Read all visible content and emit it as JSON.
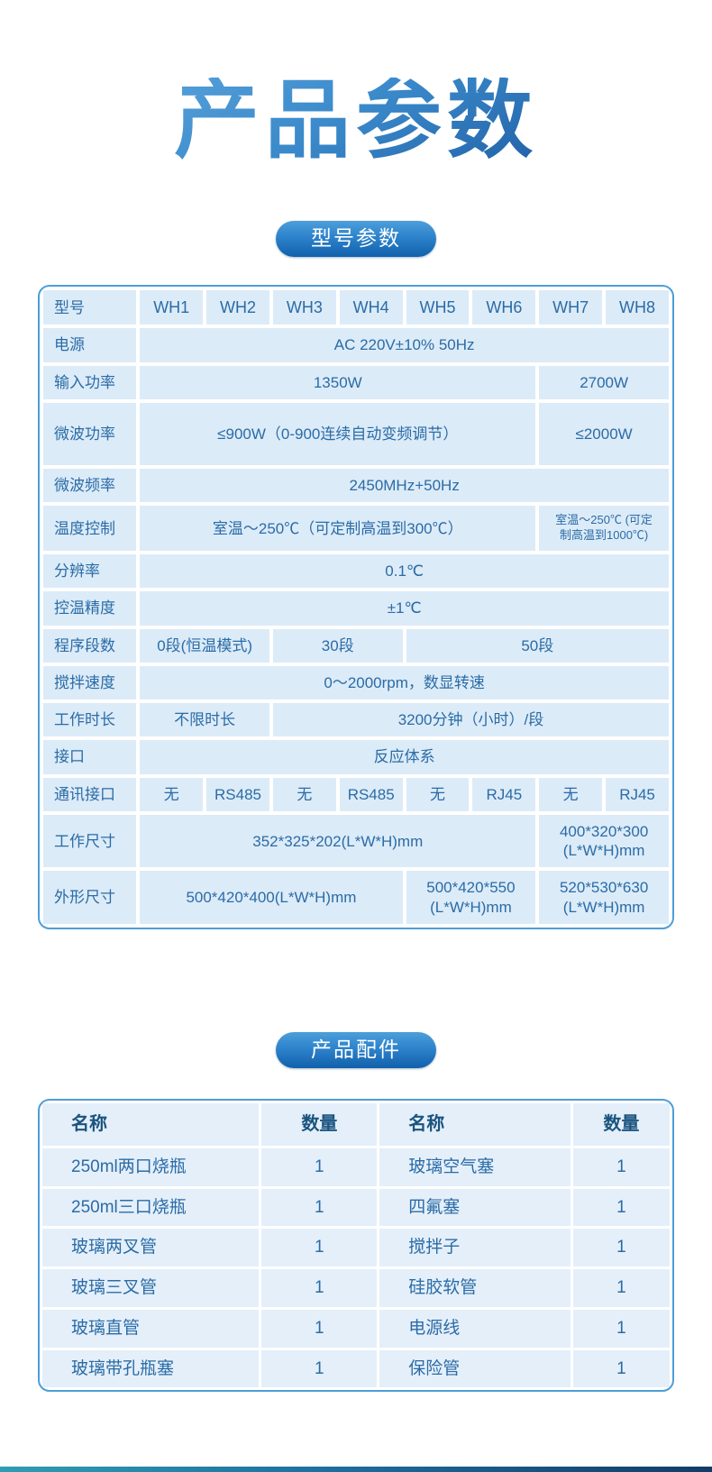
{
  "page": {
    "title": "产品参数"
  },
  "sections": {
    "model_params": {
      "badge": "型号参数"
    },
    "accessories": {
      "badge": "产品配件"
    }
  },
  "spec_table": {
    "model_row": {
      "label": "型号",
      "models": [
        "WH1",
        "WH2",
        "WH3",
        "WH4",
        "WH5",
        "WH6",
        "WH7",
        "WH8"
      ]
    },
    "rows": [
      {
        "label": "电源",
        "cells": [
          {
            "text": "AC 220V±10% 50Hz",
            "span": 8
          }
        ]
      },
      {
        "label": "输入功率",
        "cells": [
          {
            "text": "1350W",
            "span": 6
          },
          {
            "text": "2700W",
            "span": 2
          }
        ]
      },
      {
        "label": "微波功率",
        "tall": true,
        "cells": [
          {
            "text": "≤900W（0-900连续自动变频调节）",
            "span": 6
          },
          {
            "text": "≤2000W",
            "span": 2
          }
        ]
      },
      {
        "label": "微波频率",
        "cells": [
          {
            "text": "2450MHz+50Hz",
            "span": 8
          }
        ]
      },
      {
        "label": "温度控制",
        "cells": [
          {
            "text": "室温～250℃（可定制高温到300℃）",
            "span": 6
          },
          {
            "text": "室温～250℃ (可定\n制高温到1000℃)",
            "span": 2,
            "small": true
          }
        ]
      },
      {
        "label": "分辨率",
        "cells": [
          {
            "text": "0.1℃",
            "span": 8
          }
        ]
      },
      {
        "label": "控温精度",
        "cells": [
          {
            "text": "±1℃",
            "span": 8
          }
        ]
      },
      {
        "label": "程序段数",
        "cells": [
          {
            "text": "0段(恒温模式)",
            "span": 2
          },
          {
            "text": "30段",
            "span": 2
          },
          {
            "text": "50段",
            "span": 4
          }
        ]
      },
      {
        "label": "搅拌速度",
        "cells": [
          {
            "text": "0～2000rpm，数显转速",
            "span": 8
          }
        ]
      },
      {
        "label": "工作时长",
        "cells": [
          {
            "text": "不限时长",
            "span": 2
          },
          {
            "text": "3200分钟（小时）/段",
            "span": 6
          }
        ]
      },
      {
        "label": "接口",
        "cells": [
          {
            "text": "反应体系",
            "span": 8
          }
        ]
      },
      {
        "label": "通讯接口",
        "cells": [
          {
            "text": "无",
            "span": 1
          },
          {
            "text": "RS485",
            "span": 1
          },
          {
            "text": "无",
            "span": 1
          },
          {
            "text": "RS485",
            "span": 1
          },
          {
            "text": "无",
            "span": 1
          },
          {
            "text": "RJ45",
            "span": 1
          },
          {
            "text": "无",
            "span": 1
          },
          {
            "text": "RJ45",
            "span": 1
          }
        ]
      },
      {
        "label": "工作尺寸",
        "cells": [
          {
            "text": "352*325*202(L*W*H)mm",
            "span": 6
          },
          {
            "text": "400*320*300\n(L*W*H)mm",
            "span": 2
          }
        ]
      },
      {
        "label": "外形尺寸",
        "cells": [
          {
            "text": "500*420*400(L*W*H)mm",
            "span": 4
          },
          {
            "text": "500*420*550\n(L*W*H)mm",
            "span": 2
          },
          {
            "text": "520*530*630\n(L*W*H)mm",
            "span": 2
          }
        ]
      }
    ]
  },
  "accessories_table": {
    "headers": [
      "名称",
      "数量",
      "名称",
      "数量"
    ],
    "rows": [
      [
        "250ml两口烧瓶",
        "1",
        "玻璃空气塞",
        "1"
      ],
      [
        "250ml三口烧瓶",
        "1",
        "四氟塞",
        "1"
      ],
      [
        "玻璃两叉管",
        "1",
        "搅拌子",
        "1"
      ],
      [
        "玻璃三叉管",
        "1",
        "硅胶软管",
        "1"
      ],
      [
        "玻璃直管",
        "1",
        "电源线",
        "1"
      ],
      [
        "玻璃带孔瓶塞",
        "1",
        "保险管",
        "1"
      ]
    ]
  },
  "colors": {
    "accent_blue": "#2f85cd",
    "table_border": "#4d9ed8",
    "spec_cell_bg": "#dcebf8",
    "acc_cell_bg": "#e5effa",
    "cell_text": "#2a6ca6",
    "acc_header_text": "#1a547f",
    "title_gradient_start": "#62abe0",
    "title_gradient_end": "#164f97",
    "footer_gradient_start": "#2f9db3",
    "footer_gradient_end": "#123c67"
  }
}
